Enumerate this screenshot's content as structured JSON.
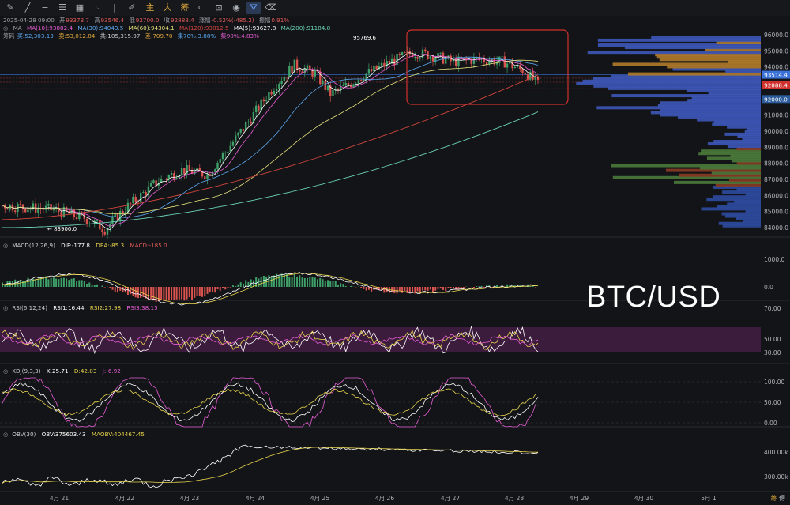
{
  "toolbar": {
    "icons": [
      "pencil-icon",
      "line-icon",
      "lines-icon",
      "fib-icon",
      "grid-icon",
      "dots-icon",
      "bar-icon",
      "snap-icon",
      "magnet-icon",
      "lock-icon",
      "eye-icon",
      "filter-icon",
      "trash-icon"
    ],
    "cn_buttons": [
      "主",
      "大",
      "筹"
    ]
  },
  "info": {
    "date": "2025-04-28 09:00",
    "open_label": "开",
    "open": "93373.7",
    "high_label": "高",
    "high": "93546.4",
    "low_label": "低",
    "low": "92700.0",
    "close_label": "收",
    "close": "92888.4",
    "chg_label": "涨幅",
    "chg": "-0.52%(-485.2)",
    "amp_label": "振幅",
    "amp": "0.91%",
    "ma_label": "MA",
    "ma10": "MA(10):93882.4",
    "ma30": "MA(30):94043.5",
    "ma60": "MA(60):94304.1",
    "ma120": "MA(120):93812.5",
    "ma5": "MA(5):93627.8",
    "ma200": "MA(200):91184.8",
    "chip_label": "筹码",
    "buy": "买:52,303.13",
    "sell": "卖:53,012.84",
    "total": "共:105,315.97",
    "diff": "差:709.70",
    "p70": "集70%:3.88%",
    "p90": "集90%:4.83%"
  },
  "indicators": {
    "macd": {
      "name": "MACD(12,26,9)",
      "dif": "DIF:-177.8",
      "dea": "DEA:-85.3",
      "macd": "MACD:-185.0"
    },
    "rsi": {
      "name": "RSI(6,12,24)",
      "rsi1": "RSI1:16.44",
      "rsi2": "RSI2:27.98",
      "rsi3": "RSI3:38.15"
    },
    "kdj": {
      "name": "KDJ(9,3,3)",
      "k": "K:25.71",
      "d": "D:42.03",
      "j": "J:-6.92"
    },
    "obv": {
      "name": "OBV(30)",
      "obv": "OBV:375603.43",
      "maobv": "MAOBV:404467.45"
    }
  },
  "pair_label": "BTC/USD",
  "corner": [
    "筹",
    "傳"
  ],
  "chart_data": {
    "type": "line",
    "main": {
      "y_ticks": [
        "96000.0",
        "95000.0",
        "94000.0",
        "93000.0",
        "92000.0",
        "91000.0",
        "90000.0",
        "89000.0",
        "88000.0",
        "87000.0",
        "86000.0",
        "85000.0",
        "84000.0"
      ],
      "tag_current": "93514.4",
      "tag_close": "92888.4",
      "tag_low": "92000.0",
      "high_label": "95769.6",
      "low_label": "83900.0"
    },
    "x_ticks": [
      "4月 21",
      "4月 22",
      "4月 23",
      "4月 24",
      "4月 25",
      "4月 26",
      "4月 27",
      "4月 28",
      "4月 29",
      "4月 30",
      "5月 1"
    ],
    "macd_ticks": [
      "1000.0",
      "0.0"
    ],
    "rsi_ticks": [
      "70.00",
      "50.00",
      "30.00"
    ],
    "kdj_ticks": [
      "100.00",
      "50.00",
      "0.00"
    ],
    "obv_ticks": [
      "400.00k",
      "300.00k"
    ],
    "series": [
      {
        "name": "MA(5)",
        "color": "#ffffff"
      },
      {
        "name": "MA(10)",
        "color": "#e8d44d"
      },
      {
        "name": "MA(30)",
        "color": "#5aa7f0"
      },
      {
        "name": "MA(60)",
        "color": "#e6e27a"
      },
      {
        "name": "MA(120)",
        "color": "#d0453d"
      },
      {
        "name": "MA(200)",
        "color": "#6ad0b6"
      }
    ]
  },
  "colors": {
    "up": "#3fa16a",
    "down": "#d9534f",
    "accent": "#3a72d8",
    "box": "#d0312d"
  }
}
